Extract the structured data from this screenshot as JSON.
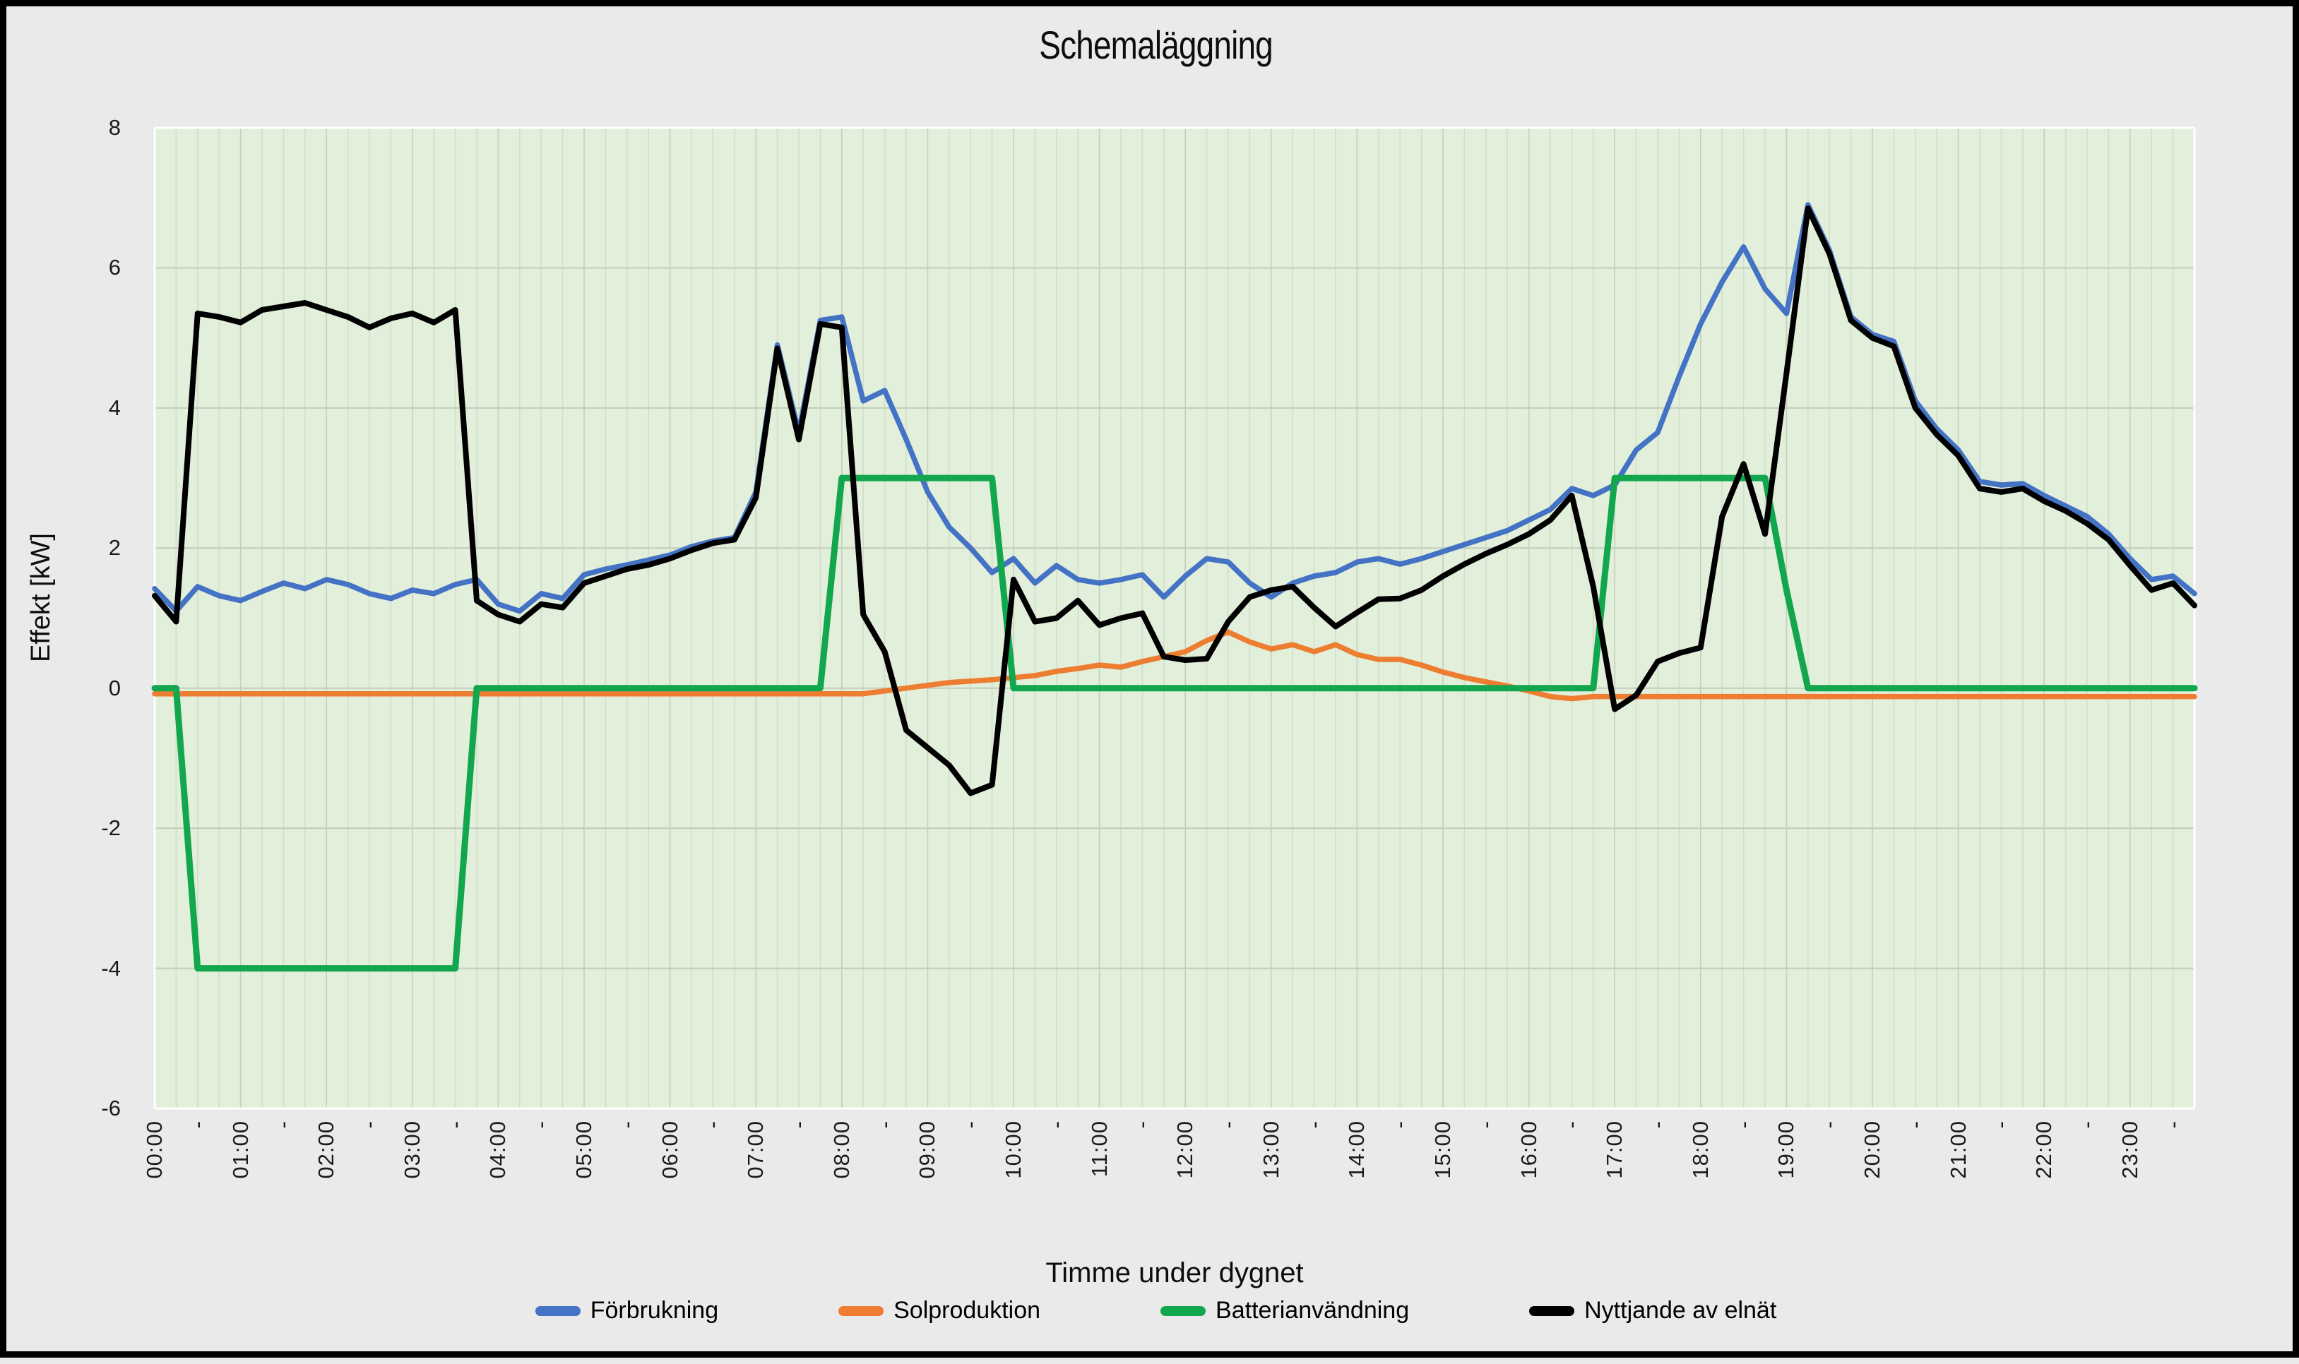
{
  "chart_data": {
    "type": "line",
    "title": "Schemaläggning",
    "xlabel": "Timme under dygnet",
    "ylabel": "Effekt [kW]",
    "ylim": [
      -6,
      8
    ],
    "y_ticks": [
      "8",
      "6",
      "4",
      "2",
      "0",
      "-2",
      "-4",
      "-6"
    ],
    "y_tick_values": [
      8,
      6,
      4,
      2,
      0,
      -2,
      -4,
      -6
    ],
    "grid": "on",
    "legend_position": "bottom",
    "x_resolution_minutes": 15,
    "hour_labels": [
      "00:00",
      "01:00",
      "02:00",
      "03:00",
      "04:00",
      "05:00",
      "06:00",
      "07:00",
      "08:00",
      "09:00",
      "10:00",
      "11:00",
      "12:00",
      "13:00",
      "14:00",
      "15:00",
      "16:00",
      "17:00",
      "18:00",
      "19:00",
      "20:00",
      "21:00",
      "22:00",
      "23:00"
    ],
    "half_hour_tick_text": "-",
    "colors": {
      "plot_bg": "#e2efda",
      "outer_bg": "#eaeaea",
      "grid_minor": "#d3ddcb",
      "grid_hour": "#c4d0bc",
      "grid_horizontal": "#c2ccba",
      "plot_edge": "#ffffff"
    },
    "series": [
      {
        "name": "Förbrukning",
        "color": "#4472c4",
        "width": 7.5,
        "values": [
          1.42,
          1.1,
          1.45,
          1.32,
          1.25,
          1.38,
          1.5,
          1.42,
          1.55,
          1.48,
          1.35,
          1.28,
          1.4,
          1.35,
          1.48,
          1.55,
          1.2,
          1.1,
          1.35,
          1.28,
          1.62,
          1.7,
          1.76,
          1.83,
          1.9,
          2.02,
          2.1,
          2.15,
          2.8,
          4.9,
          3.65,
          5.25,
          5.3,
          4.1,
          4.25,
          3.55,
          2.8,
          2.3,
          2.0,
          1.65,
          1.85,
          1.5,
          1.75,
          1.55,
          1.5,
          1.55,
          1.62,
          1.3,
          1.6,
          1.85,
          1.8,
          1.5,
          1.3,
          1.5,
          1.6,
          1.65,
          1.8,
          1.85,
          1.77,
          1.85,
          1.95,
          2.05,
          2.15,
          2.25,
          2.4,
          2.55,
          2.85,
          2.75,
          2.9,
          3.4,
          3.65,
          4.45,
          5.2,
          5.8,
          6.3,
          5.7,
          5.35,
          6.9,
          6.25,
          5.3,
          5.05,
          4.95,
          4.1,
          3.7,
          3.4,
          2.95,
          2.9,
          2.92,
          2.75,
          2.6,
          2.45,
          2.2,
          1.85,
          1.55,
          1.6,
          1.35
        ]
      },
      {
        "name": "Solproduktion",
        "color": "#ed7d31",
        "width": 7.5,
        "values": [
          -0.08,
          -0.08,
          -0.08,
          -0.08,
          -0.08,
          -0.08,
          -0.08,
          -0.08,
          -0.08,
          -0.08,
          -0.08,
          -0.08,
          -0.08,
          -0.08,
          -0.08,
          -0.08,
          -0.08,
          -0.08,
          -0.08,
          -0.08,
          -0.08,
          -0.08,
          -0.08,
          -0.08,
          -0.08,
          -0.08,
          -0.08,
          -0.08,
          -0.08,
          -0.08,
          -0.08,
          -0.08,
          -0.08,
          -0.08,
          -0.04,
          0.0,
          0.04,
          0.08,
          0.1,
          0.12,
          0.15,
          0.18,
          0.24,
          0.28,
          0.33,
          0.3,
          0.38,
          0.45,
          0.52,
          0.68,
          0.8,
          0.66,
          0.56,
          0.62,
          0.52,
          0.62,
          0.48,
          0.41,
          0.41,
          0.33,
          0.23,
          0.15,
          0.09,
          0.03,
          -0.04,
          -0.12,
          -0.15,
          -0.12,
          -0.12,
          -0.12,
          -0.12,
          -0.12,
          -0.12,
          -0.12,
          -0.12,
          -0.12,
          -0.12,
          -0.12,
          -0.12,
          -0.12,
          -0.12,
          -0.12,
          -0.12,
          -0.12,
          -0.12,
          -0.12,
          -0.12,
          -0.12,
          -0.12,
          -0.12,
          -0.12,
          -0.12,
          -0.12,
          -0.12,
          -0.12,
          -0.12
        ]
      },
      {
        "name": "Batterianvändning",
        "color": "#12a64e",
        "width": 9,
        "values": [
          0,
          0,
          -4,
          -4,
          -4,
          -4,
          -4,
          -4,
          -4,
          -4,
          -4,
          -4,
          -4,
          -4,
          -4,
          0,
          0,
          0,
          0,
          0,
          0,
          0,
          0,
          0,
          0,
          0,
          0,
          0,
          0,
          0,
          0,
          0,
          3,
          3,
          3,
          3,
          3,
          3,
          3,
          3,
          0,
          0,
          0,
          0,
          0,
          0,
          0,
          0,
          0,
          0,
          0,
          0,
          0,
          0,
          0,
          0,
          0,
          0,
          0,
          0,
          0,
          0,
          0,
          0,
          0,
          0,
          0,
          0,
          3,
          3,
          3,
          3,
          3,
          3,
          3,
          3,
          1.4,
          0,
          0,
          0,
          0,
          0,
          0,
          0,
          0,
          0,
          0,
          0,
          0,
          0,
          0,
          0,
          0,
          0,
          0,
          0
        ]
      },
      {
        "name": "Nyttjande av elnät",
        "color": "#000000",
        "width": 8,
        "values": [
          1.32,
          0.95,
          5.35,
          5.3,
          5.22,
          5.4,
          5.45,
          5.5,
          5.4,
          5.3,
          5.15,
          5.28,
          5.35,
          5.22,
          5.4,
          1.25,
          1.05,
          0.95,
          1.2,
          1.15,
          1.5,
          1.6,
          1.7,
          1.76,
          1.85,
          1.97,
          2.07,
          2.12,
          2.72,
          4.85,
          3.55,
          5.2,
          5.15,
          1.05,
          0.52,
          -0.6,
          -0.85,
          -1.1,
          -1.5,
          -1.38,
          1.55,
          0.95,
          1.0,
          1.25,
          0.9,
          1.0,
          1.07,
          0.45,
          0.4,
          0.42,
          0.95,
          1.3,
          1.4,
          1.45,
          1.15,
          0.88,
          1.08,
          1.27,
          1.28,
          1.4,
          1.6,
          1.77,
          1.92,
          2.05,
          2.2,
          2.4,
          2.75,
          1.45,
          -0.3,
          -0.1,
          0.38,
          0.5,
          0.58,
          2.45,
          3.2,
          2.2,
          4.5,
          6.85,
          6.2,
          5.25,
          5.0,
          4.88,
          4.0,
          3.62,
          3.32,
          2.85,
          2.8,
          2.85,
          2.67,
          2.53,
          2.35,
          2.12,
          1.75,
          1.4,
          1.5,
          1.18
        ]
      }
    ]
  }
}
